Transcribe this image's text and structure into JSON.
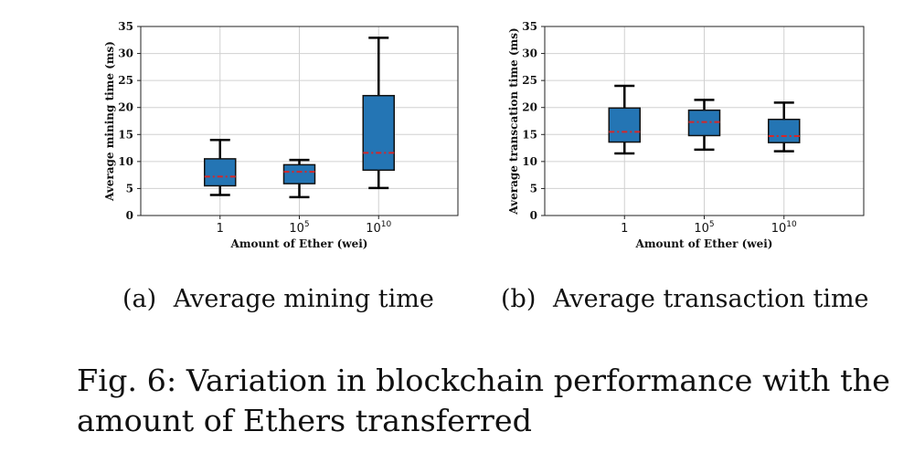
{
  "colors": {
    "box_fill": "#2475b4",
    "median": "#d62728",
    "whisker": "#000000",
    "grid": "#d0d0d0"
  },
  "chart_data": [
    {
      "type": "box",
      "title": "",
      "xlabel": "Amount of Ether (wei)",
      "ylabel": "Average mining time (ms)",
      "ylim": [
        0,
        35
      ],
      "yticks": [
        0,
        5,
        10,
        15,
        20,
        25,
        30,
        35
      ],
      "grid": true,
      "categories": [
        {
          "base": "1",
          "exp": ""
        },
        {
          "base": "10",
          "exp": "5"
        },
        {
          "base": "10",
          "exp": "10"
        }
      ],
      "boxes": [
        {
          "whisker_low": 3.8,
          "q1": 5.5,
          "median": 7.2,
          "q3": 10.5,
          "whisker_high": 14.0
        },
        {
          "whisker_low": 3.4,
          "q1": 5.9,
          "median": 8.1,
          "q3": 9.4,
          "whisker_high": 10.3
        },
        {
          "whisker_low": 5.1,
          "q1": 8.4,
          "median": 11.6,
          "q3": 22.2,
          "whisker_high": 32.9
        }
      ],
      "caption_tag": "(a)",
      "caption_text": "Average mining time"
    },
    {
      "type": "box",
      "title": "",
      "xlabel": "Amount of Ether (wei)",
      "ylabel": "Average transcation time (ms)",
      "ylim": [
        0,
        35
      ],
      "yticks": [
        0,
        5,
        10,
        15,
        20,
        25,
        30,
        35
      ],
      "grid": true,
      "categories": [
        {
          "base": "1",
          "exp": ""
        },
        {
          "base": "10",
          "exp": "5"
        },
        {
          "base": "10",
          "exp": "10"
        }
      ],
      "boxes": [
        {
          "whisker_low": 11.5,
          "q1": 13.6,
          "median": 15.5,
          "q3": 19.9,
          "whisker_high": 24.0
        },
        {
          "whisker_low": 12.2,
          "q1": 14.8,
          "median": 17.3,
          "q3": 19.5,
          "whisker_high": 21.4
        },
        {
          "whisker_low": 11.9,
          "q1": 13.5,
          "median": 14.7,
          "q3": 17.8,
          "whisker_high": 20.9
        }
      ],
      "caption_tag": "(b)",
      "caption_text": "Average transaction time"
    }
  ],
  "figure_caption": {
    "line1": "Fig. 6: Variation in blockchain performance with the",
    "line2": "amount of Ethers transferred"
  }
}
